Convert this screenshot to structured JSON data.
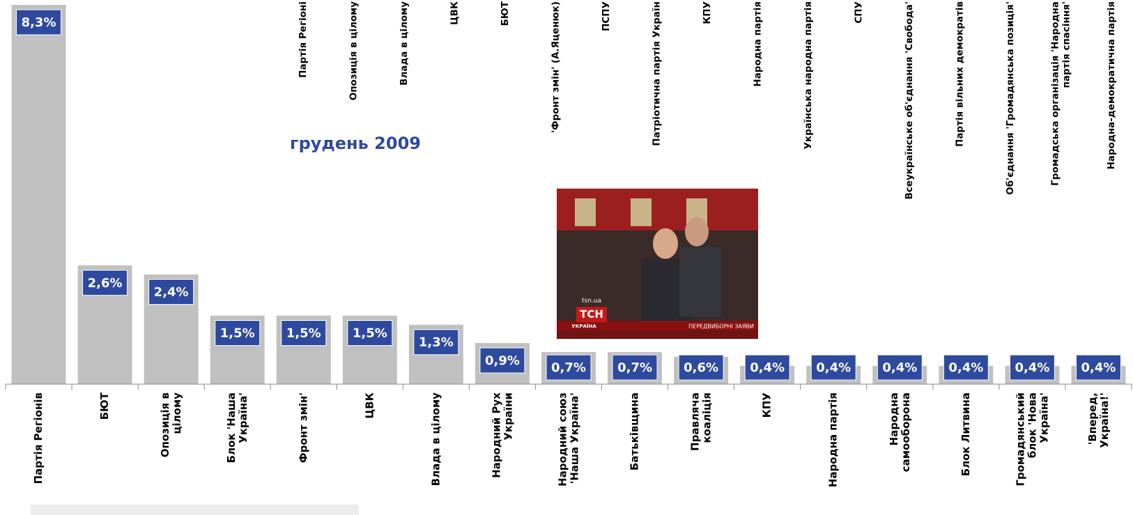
{
  "chart_data": {
    "type": "bar",
    "subtitle": "грудень 2009",
    "categories": [
      "Партія Регіонів",
      "БЮТ",
      "Опозиція в\nцілому",
      "Блок 'Наша\nУкраїна'",
      "Фронт змін'",
      "ЦВК",
      "Влада в цілому",
      "Народний Рух\nУкраїни",
      "Народний союз\n'Наша Україна'",
      "Батьківщина",
      "Правляча\nкоаліція",
      "КПУ",
      "Народна партія",
      "Народна\nсамооборона",
      "Блок Литвина",
      "Громадянський\nблок 'Нова\nУкраїна'",
      "'Вперед,\nУкраїна!'"
    ],
    "values": [
      8.3,
      2.6,
      2.4,
      1.5,
      1.5,
      1.5,
      1.3,
      0.9,
      0.7,
      0.7,
      0.6,
      0.4,
      0.4,
      0.4,
      0.4,
      0.4,
      0.4
    ],
    "value_labels": [
      "8,3%",
      "2,6%",
      "2,4%",
      "1,5%",
      "1,5%",
      "1,5%",
      "1,3%",
      "0,9%",
      "0,7%",
      "0,7%",
      "0,6%",
      "0,4%",
      "0,4%",
      "0,4%",
      "0,4%",
      "0,4%",
      "0,4%"
    ],
    "color": "#c0c0c0",
    "label_color": "#2e4a9e",
    "top_labels": [
      "Партія Регіоні",
      "Опозиція в цілому",
      "Влада в цілому",
      "ЦВК",
      "БЮТ",
      "'Фронт змін' (А.Яценюк)",
      "ПСПУ",
      "Патріотична партія Україн",
      "КПУ",
      "Народна партія",
      "Українська народна партія",
      "СПУ",
      "Всеукраїнське об'єднання 'Свобода'",
      "Партія вільних демократів",
      "Об'єднання 'Громадянська позиція'",
      "Громадська організація 'Народна\nпартія спасіння'",
      "Народна-демократична партія"
    ]
  },
  "photo": {
    "site": "tsn.ua",
    "logo": "ТСН",
    "country": "УКРАЇНА",
    "caption": "ПЕРЕДВИБОРНІ ЗАЯВИ"
  }
}
